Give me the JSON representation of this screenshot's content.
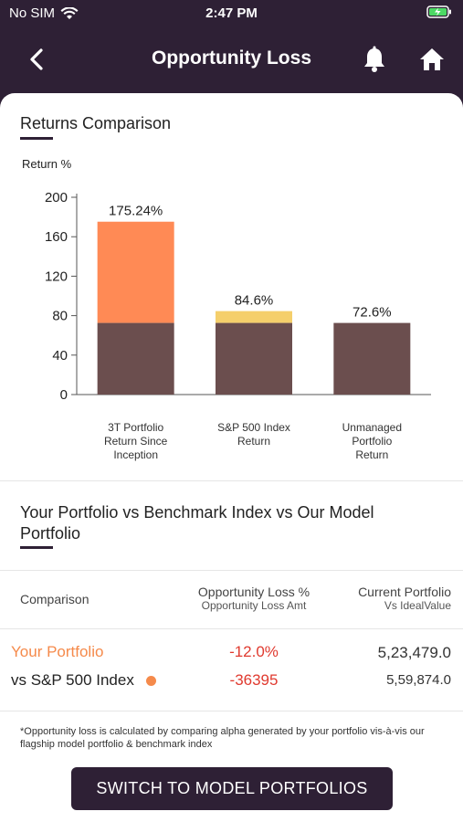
{
  "status": {
    "carrier": "No SIM",
    "time": "2:47 PM"
  },
  "nav": {
    "title": "Opportunity Loss",
    "back_icon": "chevron-left-icon",
    "bell_icon": "bell-icon",
    "home_icon": "home-icon"
  },
  "returns_section": {
    "title": "Returns Comparison"
  },
  "chart_data": {
    "type": "bar",
    "stacked": true,
    "ylabel": "Return %",
    "ylim": [
      0,
      200
    ],
    "yticks": [
      0,
      40,
      80,
      120,
      160,
      200
    ],
    "categories": [
      "3T Portfolio Return Since Inception",
      "S&P 500 Index Return",
      "Unmanaged Portfolio Return"
    ],
    "category_lines": [
      [
        "3T Portfolio",
        "Return Since",
        "Inception"
      ],
      [
        "S&P 500 Index",
        "Return"
      ],
      [
        "Unmanaged",
        "Portfolio",
        "Return"
      ]
    ],
    "base_values": [
      72.6,
      72.6,
      72.6
    ],
    "totals": [
      175.24,
      84.6,
      72.6
    ],
    "data_labels": [
      "175.24%",
      "84.6%",
      "72.6%"
    ],
    "base_color": "#6b4e4e",
    "top_colors": [
      "#ff8a55",
      "#f5cf6b",
      "#6b4e4e"
    ]
  },
  "comparison_section": {
    "title_line1": "Your Portfolio vs Benchmark Index vs Our Model",
    "title_line2": "Portfolio"
  },
  "table": {
    "col1": "Comparison",
    "col2_main": "Opportunity Loss %",
    "col2_sub": "Opportunity Loss Amt",
    "col3_main": "Current Portfolio",
    "col3_sub": "Vs IdealValue",
    "row1": {
      "label": "Your Portfolio",
      "loss": "-12.0%",
      "value": "5,23,479.0"
    },
    "row2": {
      "label": "vs S&P 500 Index",
      "loss": "-36395",
      "value": "5,59,874.0"
    },
    "accent": "#f58a4b",
    "negative": "#e03a2f"
  },
  "footnote": "*Opportunity loss is calculated by comparing alpha generated by your portfolio vis-à-vis our flagship model portfolio & benchmark index",
  "switch_button": "SWITCH TO MODEL PORTFOLIOS"
}
